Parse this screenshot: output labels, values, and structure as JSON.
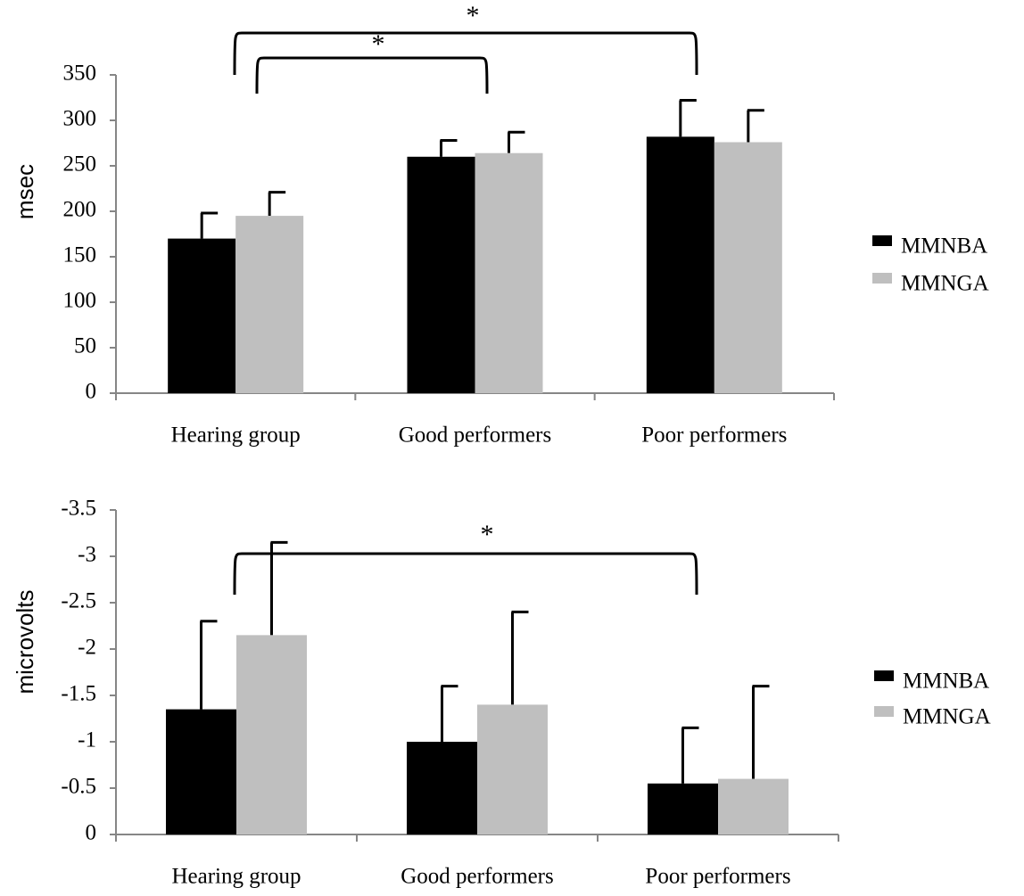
{
  "chart_data": [
    {
      "type": "bar",
      "y_label": "msec",
      "categories": [
        "Hearing group",
        "Good performers",
        "Poor performers"
      ],
      "series": [
        {
          "name": "MMNBA",
          "color": "#000000",
          "values": [
            170,
            260,
            282
          ],
          "errors": [
            28,
            18,
            40
          ]
        },
        {
          "name": "MMNGA",
          "color": "#bfbfbf",
          "values": [
            195,
            264,
            276
          ],
          "errors": [
            26,
            23,
            35
          ]
        }
      ],
      "ylim": [
        0,
        350
      ],
      "yticks": [
        0,
        50,
        100,
        150,
        200,
        250,
        300,
        350
      ],
      "legend": "right",
      "annotations": [
        "*",
        "*"
      ]
    },
    {
      "type": "bar",
      "y_label": "microvolts",
      "categories": [
        "Hearing group",
        "Good performers",
        "Poor performers"
      ],
      "series": [
        {
          "name": "MMNBA",
          "color": "#000000",
          "values": [
            -1.35,
            -1.0,
            -0.55
          ],
          "errors": [
            0.95,
            0.6,
            0.6
          ]
        },
        {
          "name": "MMNGA",
          "color": "#bfbfbf",
          "values": [
            -2.15,
            -1.4,
            -0.6
          ],
          "errors": [
            1.0,
            1.0,
            1.0
          ]
        }
      ],
      "ylim": [
        0,
        -3.5
      ],
      "yticks": [
        0,
        -0.5,
        -1,
        -1.5,
        -2,
        -2.5,
        -3,
        -3.5
      ],
      "legend": "right",
      "annotations": [
        "*"
      ]
    }
  ]
}
